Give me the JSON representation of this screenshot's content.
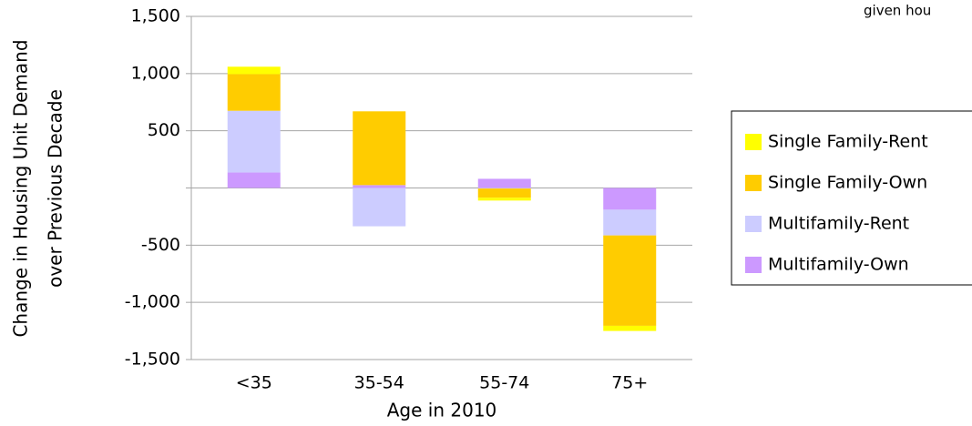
{
  "chart_data": {
    "type": "stacked-bar",
    "annotation": "given hou",
    "ylabel": [
      "Change in Housing Unit Demand",
      "over Previous Decade"
    ],
    "xlabel": "Age in 2010",
    "categories": [
      "<35",
      "35-54",
      "55-74",
      "75+"
    ],
    "series": [
      {
        "name": "Single Family-Rent",
        "color": "#ffff00",
        "values": [
          65,
          0,
          -25,
          -45
        ]
      },
      {
        "name": "Single Family-Own",
        "color": "#ffcc00",
        "values": [
          320,
          645,
          -80,
          -790
        ]
      },
      {
        "name": "Multifamily-Rent",
        "color": "#ccccff",
        "values": [
          540,
          -335,
          -5,
          -225
        ]
      },
      {
        "name": "Multifamily-Own",
        "color": "#cc99ff",
        "values": [
          135,
          25,
          80,
          -190
        ]
      }
    ],
    "ylim": [
      -1500,
      1500
    ],
    "yticks": [
      {
        "value": -1500,
        "label": "-1,500"
      },
      {
        "value": -1000,
        "label": "-1,000"
      },
      {
        "value": -500,
        "label": "-500"
      },
      {
        "value": 0,
        "label": null
      },
      {
        "value": 500,
        "label": "500"
      },
      {
        "value": 1000,
        "label": "1,000"
      },
      {
        "value": 1500,
        "label": "1,500"
      }
    ],
    "grid": true,
    "legend": "right"
  }
}
